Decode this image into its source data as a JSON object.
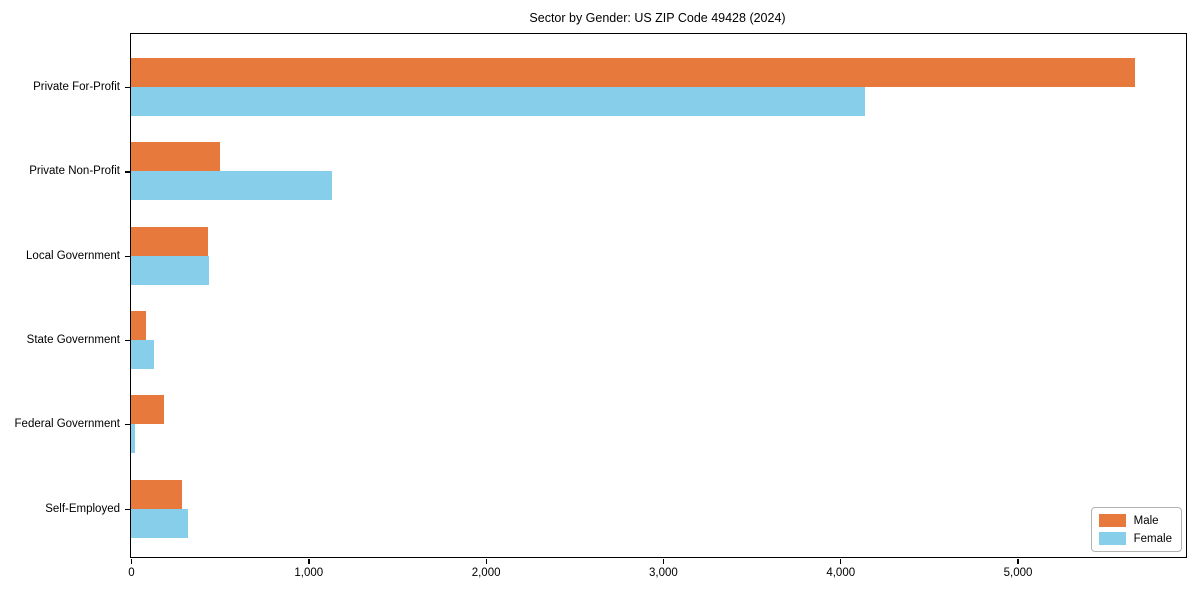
{
  "chart_data": {
    "type": "bar",
    "orientation": "horizontal",
    "title": "Sector by Gender: US ZIP Code 49428 (2024)",
    "categories": [
      "Private For-Profit",
      "Private Non-Profit",
      "Local Government",
      "State Government",
      "Federal Government",
      "Self-Employed"
    ],
    "series": [
      {
        "name": "Male",
        "color": "#e8793c",
        "values": [
          5665,
          500,
          435,
          85,
          185,
          290
        ]
      },
      {
        "name": "Female",
        "color": "#87ceeb",
        "values": [
          4140,
          1135,
          440,
          130,
          20,
          320
        ]
      }
    ],
    "xlabel": "",
    "ylabel": "",
    "xlim": [
      0,
      5950
    ],
    "x_ticks": [
      0,
      1000,
      2000,
      3000,
      4000,
      5000
    ],
    "x_tick_labels": [
      "0",
      "1,000",
      "2,000",
      "3,000",
      "4,000",
      "5,000"
    ],
    "grid": false,
    "legend_position": "lower right"
  },
  "colors": {
    "background": "#ffffff",
    "axis": "#000000",
    "legend_border": "#b3b3b3",
    "male": "#e8793c",
    "female": "#87ceeb"
  }
}
